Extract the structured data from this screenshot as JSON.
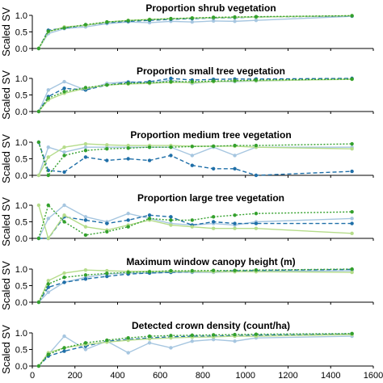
{
  "figure": {
    "ylabel": "Scaled SV",
    "colors": {
      "light_blue": "#a6c6e0",
      "dark_blue": "#1f6fa8",
      "light_green": "#b5dc8a",
      "dark_green": "#33a02c"
    }
  },
  "chart_data": [
    {
      "type": "line",
      "title": "Proportion shrub vegetation",
      "ylabel": "Scaled SV",
      "x": [
        30,
        75,
        150,
        250,
        350,
        450,
        550,
        650,
        750,
        850,
        950,
        1050,
        1500
      ],
      "xlim": [
        0,
        1600
      ],
      "ylim": [
        0,
        1.0
      ],
      "yticks": [
        0.0,
        0.5,
        1.0
      ],
      "series": [
        {
          "style": "solid-light-blue",
          "values": [
            0.0,
            0.45,
            0.6,
            0.65,
            0.75,
            0.8,
            0.78,
            0.82,
            0.8,
            0.83,
            0.82,
            0.85,
            0.97
          ]
        },
        {
          "style": "dashed-dark-blue",
          "values": [
            0.0,
            0.55,
            0.62,
            0.7,
            0.78,
            0.82,
            0.85,
            0.88,
            0.9,
            0.92,
            0.93,
            0.95,
            0.98
          ]
        },
        {
          "style": "solid-light-green",
          "values": [
            0.0,
            0.5,
            0.65,
            0.7,
            0.8,
            0.85,
            0.88,
            0.9,
            0.92,
            0.93,
            0.94,
            0.95,
            0.99
          ]
        },
        {
          "style": "dotted-dark-green",
          "values": [
            0.0,
            0.52,
            0.62,
            0.72,
            0.8,
            0.84,
            0.87,
            0.9,
            0.92,
            0.94,
            0.95,
            0.96,
            0.99
          ]
        }
      ]
    },
    {
      "type": "line",
      "title": "Proportion small tree vegetation",
      "ylabel": "Scaled SV",
      "x": [
        30,
        75,
        150,
        250,
        350,
        450,
        550,
        650,
        750,
        850,
        950,
        1050,
        1500
      ],
      "xlim": [
        0,
        1600
      ],
      "ylim": [
        0,
        1.0
      ],
      "yticks": [
        0.0,
        0.5,
        1.0
      ],
      "series": [
        {
          "style": "solid-light-blue",
          "values": [
            0.0,
            0.65,
            0.9,
            0.65,
            0.85,
            0.9,
            0.85,
            0.95,
            0.85,
            0.9,
            0.9,
            0.92,
            0.98
          ]
        },
        {
          "style": "dashed-dark-blue",
          "values": [
            0.0,
            0.45,
            0.7,
            0.65,
            0.8,
            0.88,
            0.9,
            1.0,
            0.95,
            0.97,
            0.98,
            0.98,
            1.0
          ]
        },
        {
          "style": "solid-light-green",
          "values": [
            0.0,
            0.35,
            0.55,
            0.7,
            0.8,
            0.83,
            0.85,
            0.88,
            0.87,
            0.9,
            0.92,
            0.93,
            0.97
          ]
        },
        {
          "style": "dotted-dark-green",
          "values": [
            0.0,
            0.4,
            0.6,
            0.72,
            0.8,
            0.85,
            0.87,
            0.9,
            0.9,
            0.92,
            0.93,
            0.95,
            0.98
          ]
        }
      ]
    },
    {
      "type": "line",
      "title": "Proportion medium tree vegetation",
      "ylabel": "Scaled SV",
      "x": [
        30,
        75,
        150,
        250,
        350,
        450,
        550,
        650,
        750,
        850,
        950,
        1050,
        1500
      ],
      "xlim": [
        0,
        1600
      ],
      "ylim": [
        0,
        1.0
      ],
      "yticks": [
        0.0,
        0.5,
        1.0
      ],
      "series": [
        {
          "style": "solid-light-blue",
          "values": [
            0.0,
            0.85,
            0.7,
            0.85,
            0.85,
            0.85,
            0.85,
            0.85,
            0.6,
            0.85,
            0.6,
            0.85,
            0.85
          ]
        },
        {
          "style": "dashed-dark-blue",
          "values": [
            1.0,
            0.15,
            0.1,
            0.55,
            0.45,
            0.5,
            0.45,
            0.6,
            0.3,
            0.2,
            0.2,
            0.0,
            0.12
          ]
        },
        {
          "style": "solid-light-green",
          "values": [
            0.0,
            0.55,
            0.85,
            0.95,
            0.92,
            0.9,
            0.9,
            0.9,
            0.88,
            0.88,
            0.88,
            0.85,
            0.8
          ]
        },
        {
          "style": "dotted-dark-green",
          "values": [
            1.0,
            0.0,
            0.6,
            0.75,
            0.8,
            0.82,
            0.85,
            0.85,
            0.87,
            0.88,
            0.9,
            0.9,
            0.95
          ]
        }
      ]
    },
    {
      "type": "line",
      "title": "Proportion large tree vegetation",
      "ylabel": "Scaled SV",
      "x": [
        30,
        75,
        150,
        250,
        350,
        450,
        550,
        650,
        750,
        850,
        950,
        1050,
        1500
      ],
      "xlim": [
        0,
        1600
      ],
      "ylim": [
        0,
        1.0
      ],
      "yticks": [
        0.0,
        0.5,
        1.0
      ],
      "series": [
        {
          "style": "solid-light-blue",
          "values": [
            0.0,
            0.6,
            1.0,
            0.65,
            0.5,
            0.75,
            0.6,
            0.45,
            0.4,
            0.45,
            0.4,
            0.5,
            0.6
          ]
        },
        {
          "style": "dashed-dark-blue",
          "values": [
            0.0,
            0.0,
            0.65,
            0.55,
            0.45,
            0.55,
            0.7,
            0.65,
            0.4,
            0.5,
            0.45,
            0.45,
            0.45
          ]
        },
        {
          "style": "solid-light-green",
          "values": [
            1.0,
            0.0,
            0.7,
            0.35,
            0.25,
            0.4,
            0.55,
            0.4,
            0.35,
            0.3,
            0.3,
            0.3,
            0.15
          ]
        },
        {
          "style": "dotted-dark-green",
          "values": [
            0.0,
            1.0,
            0.5,
            0.1,
            0.2,
            0.35,
            0.6,
            0.55,
            0.55,
            0.65,
            0.7,
            0.75,
            0.8
          ]
        }
      ]
    },
    {
      "type": "line",
      "title": "Maximum window canopy height (m)",
      "ylabel": "Scaled SV",
      "x": [
        30,
        75,
        150,
        250,
        350,
        450,
        550,
        650,
        750,
        850,
        950,
        1050,
        1500
      ],
      "xlim": [
        0,
        1600
      ],
      "ylim": [
        0,
        1.0
      ],
      "yticks": [
        0.0,
        0.5,
        1.0
      ],
      "series": [
        {
          "style": "solid-light-blue",
          "values": [
            0.0,
            0.3,
            0.6,
            0.75,
            0.85,
            0.88,
            0.88,
            0.9,
            0.9,
            0.9,
            0.92,
            0.93,
            0.95
          ]
        },
        {
          "style": "dashed-dark-blue",
          "values": [
            0.0,
            0.45,
            0.6,
            0.7,
            0.78,
            0.85,
            0.88,
            0.9,
            0.92,
            0.93,
            0.95,
            0.96,
            0.99
          ]
        },
        {
          "style": "solid-light-green",
          "values": [
            0.0,
            0.65,
            0.88,
            0.97,
            0.95,
            0.93,
            0.93,
            0.93,
            0.93,
            0.92,
            0.92,
            0.92,
            0.9
          ]
        },
        {
          "style": "dotted-dark-green",
          "values": [
            0.0,
            0.55,
            0.75,
            0.82,
            0.87,
            0.9,
            0.92,
            0.95,
            0.95,
            0.96,
            0.96,
            0.97,
            1.0
          ]
        }
      ]
    },
    {
      "type": "line",
      "title": "Detected crown density (count/ha)",
      "ylabel": "Scaled SV",
      "x": [
        30,
        75,
        150,
        250,
        350,
        450,
        550,
        650,
        750,
        850,
        950,
        1050,
        1500
      ],
      "xlim": [
        0,
        1600
      ],
      "xticks": [
        0,
        200,
        400,
        600,
        800,
        1000,
        1200,
        1400,
        1600
      ],
      "ylim": [
        0,
        1.0
      ],
      "yticks": [
        0.0,
        0.5,
        1.0
      ],
      "series": [
        {
          "style": "solid-light-blue",
          "values": [
            0.0,
            0.35,
            0.9,
            0.5,
            0.75,
            0.4,
            0.7,
            0.55,
            0.75,
            0.8,
            0.75,
            0.85,
            0.9
          ]
        },
        {
          "style": "dashed-dark-blue",
          "values": [
            0.0,
            0.3,
            0.45,
            0.6,
            0.75,
            0.8,
            0.85,
            0.88,
            0.9,
            0.9,
            0.92,
            0.93,
            0.97
          ]
        },
        {
          "style": "solid-light-green",
          "values": [
            0.0,
            0.4,
            0.55,
            0.65,
            0.72,
            0.78,
            0.82,
            0.85,
            0.87,
            0.88,
            0.9,
            0.9,
            0.95
          ]
        },
        {
          "style": "dotted-dark-green",
          "values": [
            0.0,
            0.35,
            0.55,
            0.7,
            0.78,
            0.85,
            0.9,
            0.92,
            0.93,
            0.94,
            0.95,
            0.96,
            0.98
          ]
        }
      ]
    }
  ]
}
